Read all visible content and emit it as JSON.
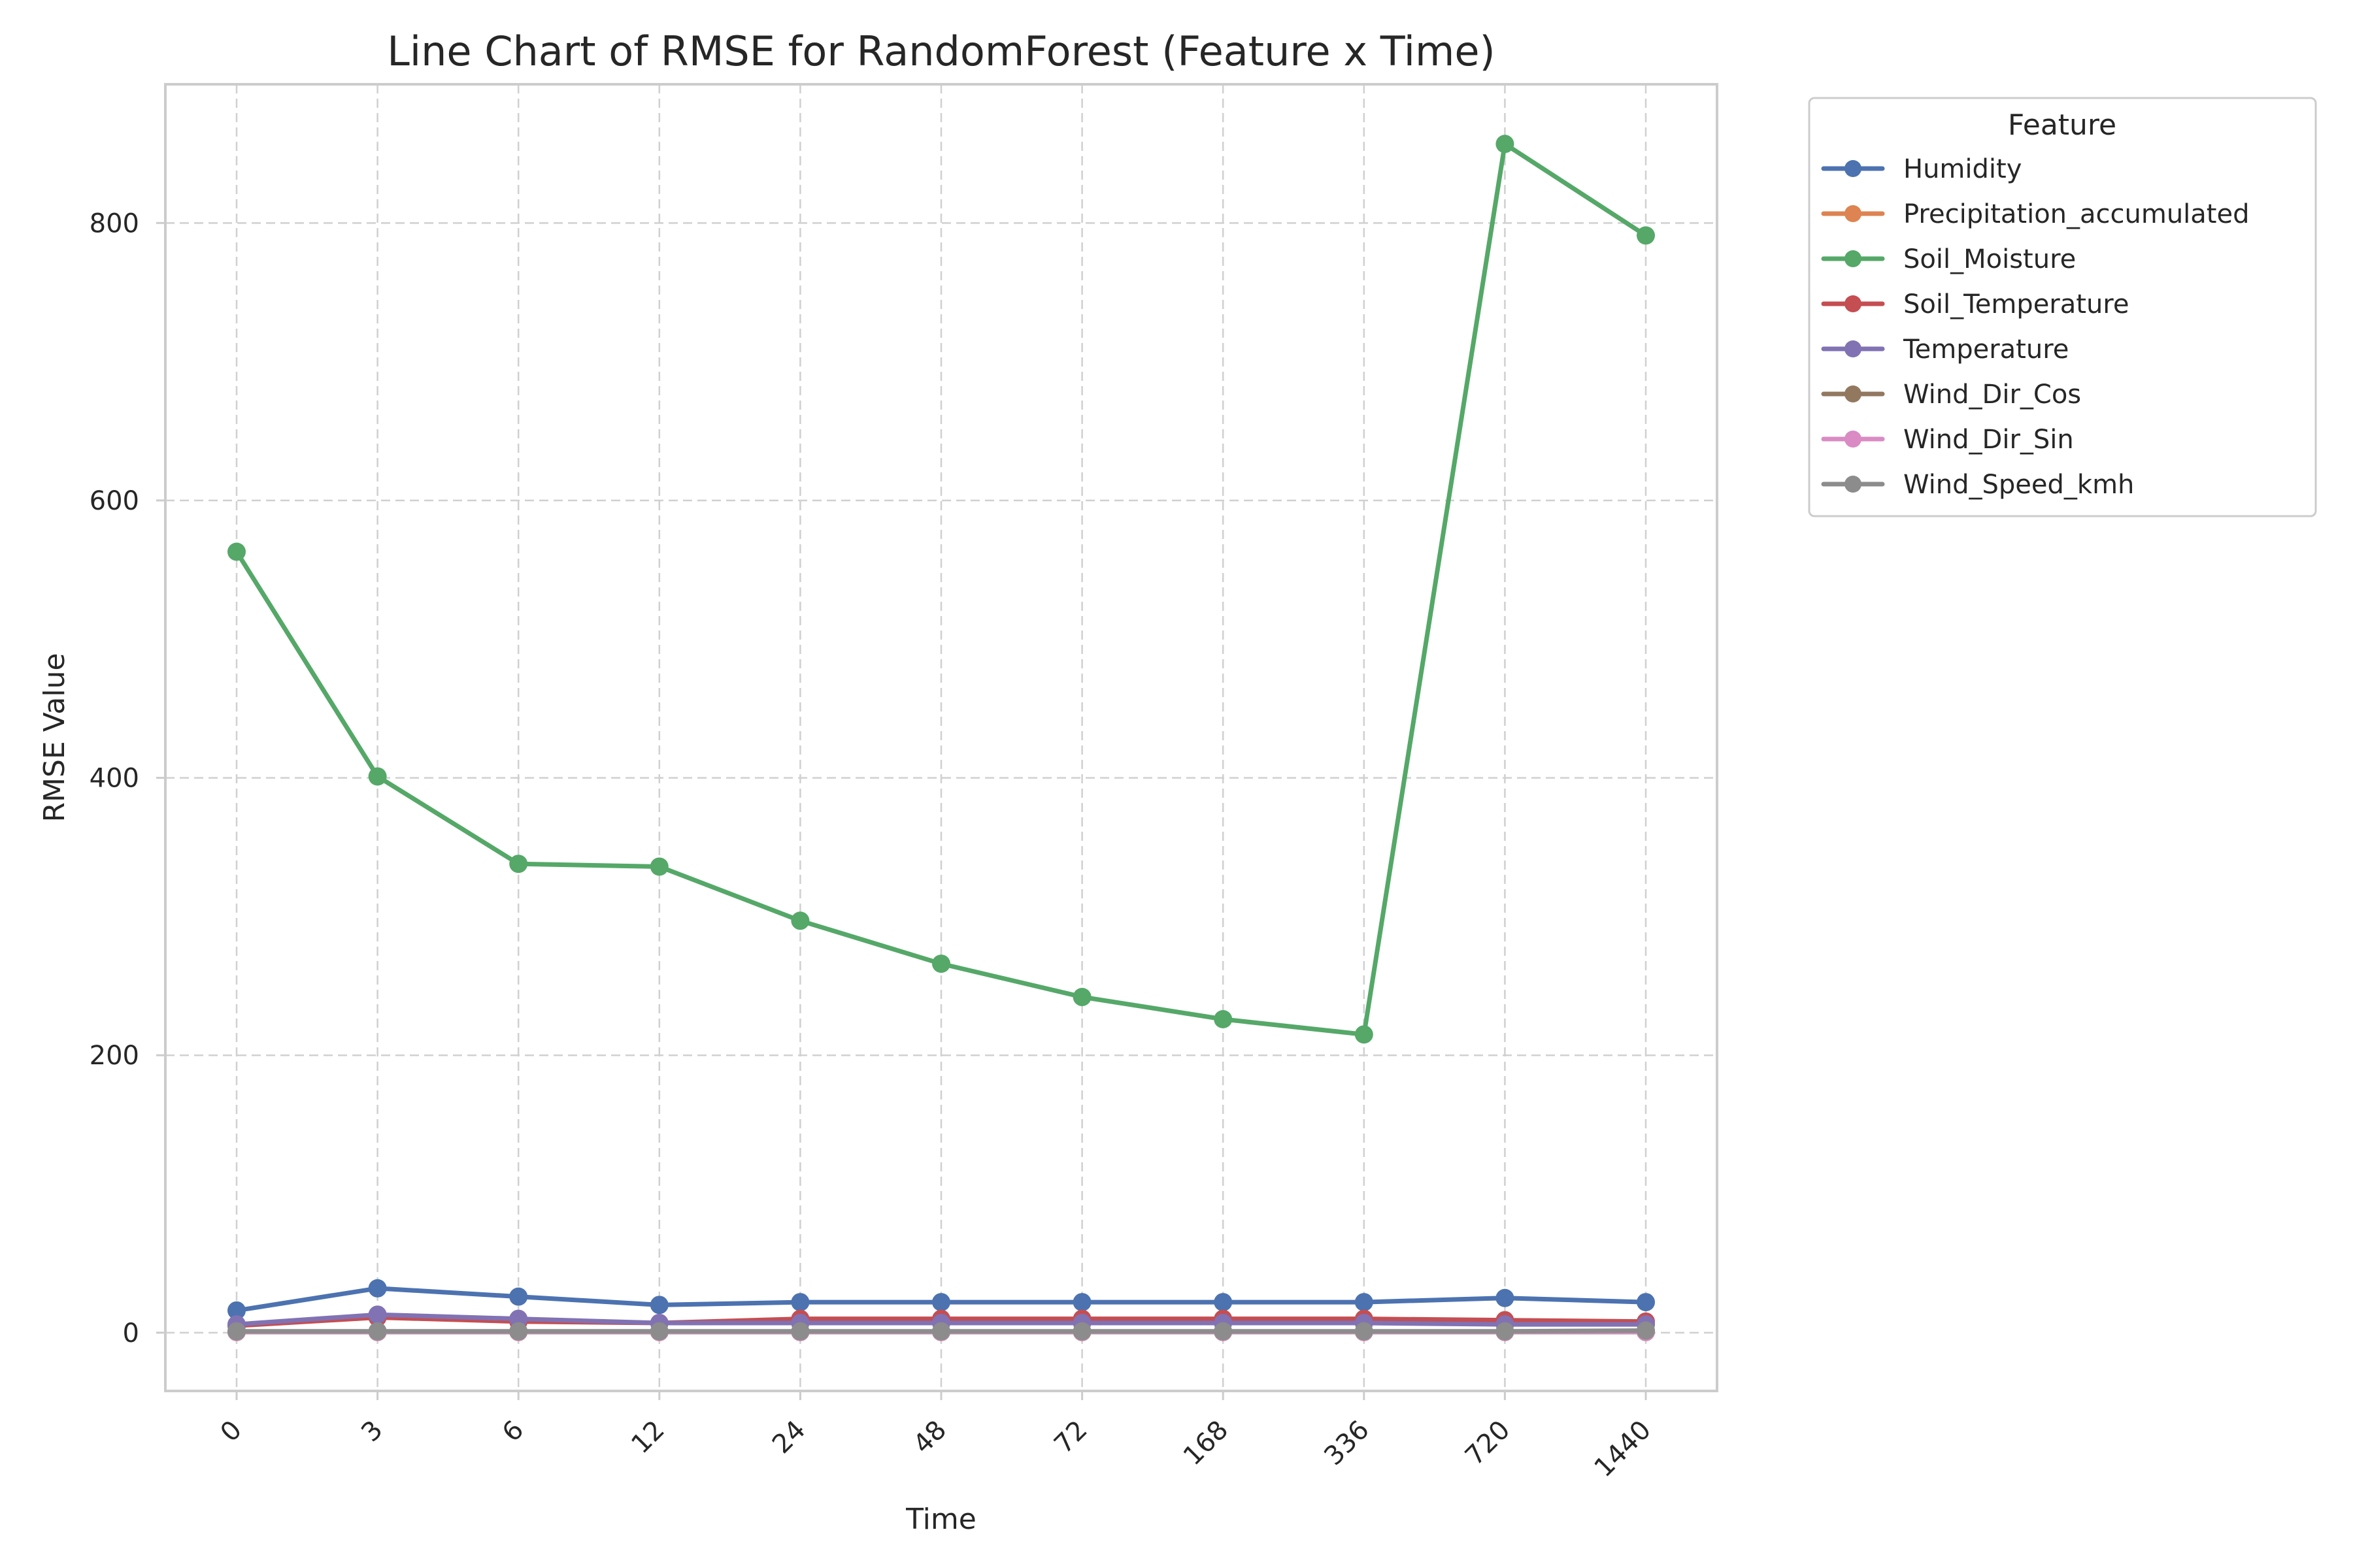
{
  "chart_data": {
    "type": "line",
    "title": "Line Chart of RMSE for RandomForest (Feature x Time)",
    "xlabel": "Time",
    "ylabel": "RMSE Value",
    "categories": [
      "0",
      "3",
      "6",
      "12",
      "24",
      "48",
      "72",
      "168",
      "336",
      "720",
      "1440"
    ],
    "ylim": [
      -42,
      900
    ],
    "yticks": [
      0,
      200,
      400,
      600,
      800
    ],
    "grid": true,
    "legend_title": "Feature",
    "legend_position": "outside-right-top",
    "series": [
      {
        "name": "Humidity",
        "color": "#4c72b0",
        "values": [
          16,
          32,
          26,
          20,
          22,
          22,
          22,
          22,
          22,
          25,
          22
        ]
      },
      {
        "name": "Precipitation_accumulated",
        "color": "#dd8452",
        "values": [
          0.5,
          0.5,
          0.5,
          0.5,
          0.5,
          0.5,
          0.5,
          0.5,
          0.5,
          0.5,
          0.5
        ]
      },
      {
        "name": "Soil_Moisture",
        "color": "#55a868",
        "values": [
          563,
          401,
          338,
          336,
          297,
          266,
          242,
          226,
          215,
          857,
          791
        ]
      },
      {
        "name": "Soil_Temperature",
        "color": "#c44e52",
        "values": [
          5,
          11,
          8,
          7,
          10,
          10,
          10,
          10,
          10,
          9,
          8
        ]
      },
      {
        "name": "Temperature",
        "color": "#8172b3",
        "values": [
          6,
          13,
          10,
          7,
          7,
          7,
          7,
          7,
          7,
          6,
          6
        ]
      },
      {
        "name": "Wind_Dir_Cos",
        "color": "#937860",
        "values": [
          0.5,
          0.5,
          0.5,
          0.5,
          0.5,
          0.5,
          0.5,
          0.5,
          0.5,
          0.5,
          0.5
        ]
      },
      {
        "name": "Wind_Dir_Sin",
        "color": "#da8bc3",
        "values": [
          0.5,
          0.5,
          0.5,
          0.5,
          0.5,
          0.5,
          0.5,
          0.5,
          0.5,
          0.5,
          0.5
        ]
      },
      {
        "name": "Wind_Speed_kmh",
        "color": "#8c8c8c",
        "values": [
          1,
          1,
          1,
          1,
          1,
          1,
          1,
          1,
          1,
          1,
          1.5
        ]
      }
    ]
  }
}
